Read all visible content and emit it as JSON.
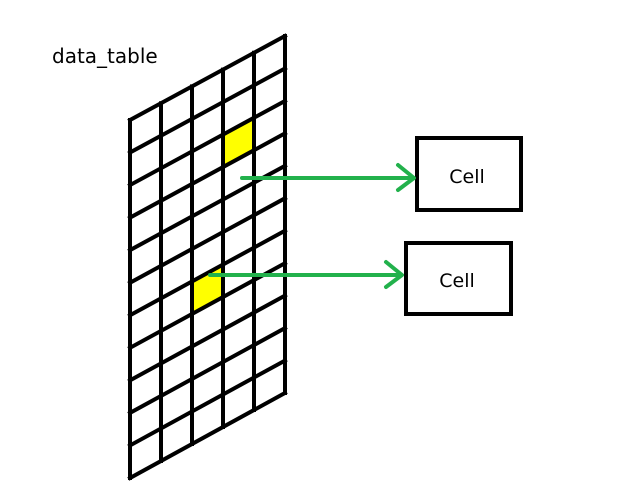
{
  "diagram": {
    "title": "data_table",
    "grid": {
      "columns": 5,
      "rows": 11,
      "highlighted_cells": [
        {
          "row": 2,
          "col": 3
        },
        {
          "row": 6,
          "col": 2
        }
      ]
    },
    "cells": [
      {
        "label": "Cell"
      },
      {
        "label": "Cell"
      }
    ],
    "colors": {
      "grid_line": "#000000",
      "highlight": "#ffff00",
      "arrow": "#22b14c",
      "box_border": "#000000"
    }
  }
}
